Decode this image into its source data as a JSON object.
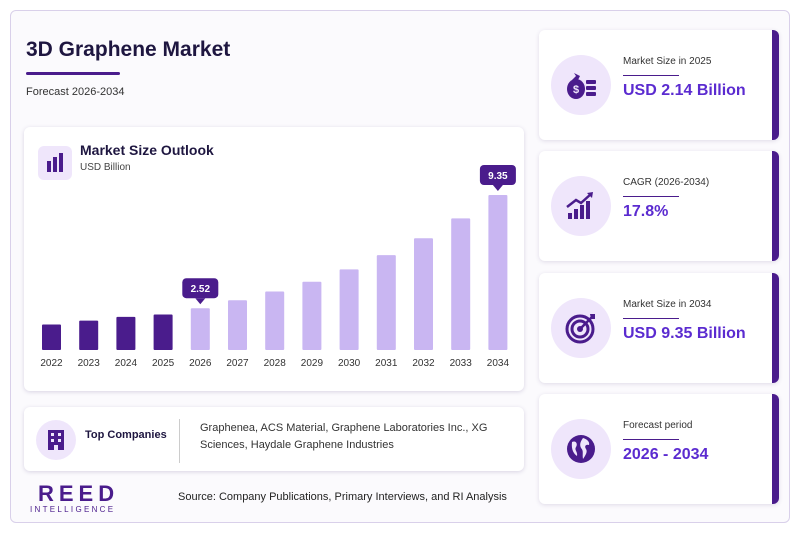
{
  "header": {
    "title": "3D Graphene Market",
    "subtitle": "Forecast 2026-2034"
  },
  "chart_panel": {
    "title": "Market Size Outlook",
    "unit": "USD Billion"
  },
  "chart_data": {
    "type": "bar",
    "title": "Market Size Outlook",
    "ylabel": "USD Billion",
    "categories": [
      "2022",
      "2023",
      "2024",
      "2025",
      "2026",
      "2027",
      "2028",
      "2029",
      "2030",
      "2031",
      "2032",
      "2033",
      "2034"
    ],
    "values": [
      1.54,
      1.77,
      2.0,
      2.14,
      2.52,
      3.0,
      3.53,
      4.12,
      4.86,
      5.72,
      6.74,
      7.94,
      9.35
    ],
    "callouts": [
      {
        "category": "2026",
        "label": "2.52"
      },
      {
        "category": "2034",
        "label": "9.35"
      }
    ],
    "historical_color": "#4a1c8c",
    "forecast_color": "#c9b6f2",
    "callout_color": "#4a1c8c"
  },
  "top_companies": {
    "label": "Top Companies",
    "text": "Graphenea, ACS Material, Graphene Laboratories Inc., XG Sciences, Haydale Graphene Industries"
  },
  "stats": [
    {
      "label": "Market Size in 2025",
      "value": "USD 2.14 Billion",
      "icon": "money-bag-icon"
    },
    {
      "label": "CAGR (2026-2034)",
      "value": "17.8%",
      "icon": "growth-chart-icon"
    },
    {
      "label": "Market Size in 2034",
      "value": "USD 9.35 Billion",
      "icon": "target-icon"
    },
    {
      "label": "Forecast period",
      "value": "2026 - 2034",
      "icon": "globe-icon"
    }
  ],
  "logo": {
    "main": "REED",
    "sub": "INTELLIGENCE"
  },
  "source": "Source: Company Publications, Primary Interviews, and RI Analysis",
  "colors": {
    "accent": "#4a1c8c",
    "value_text": "#5b2bd0",
    "icon_bg": "#efe6fb"
  }
}
